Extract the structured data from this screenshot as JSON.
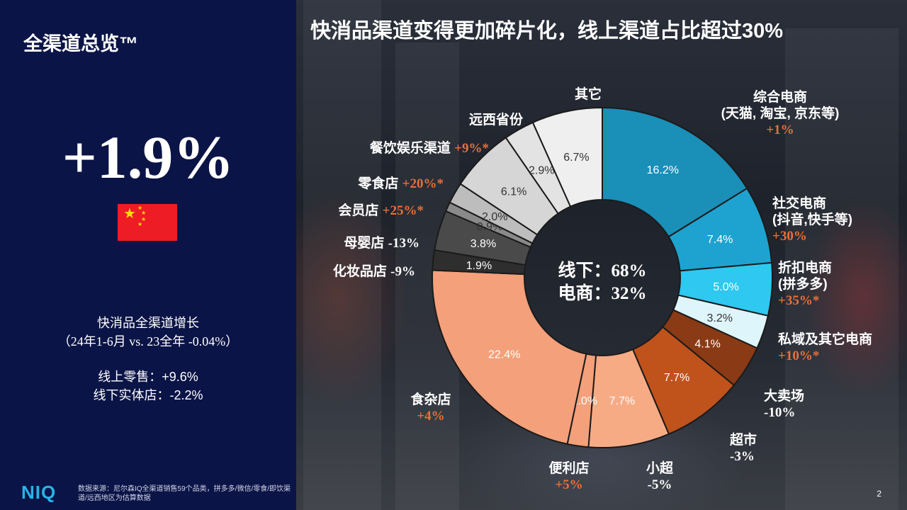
{
  "left_panel": {
    "title": "全渠道总览™",
    "big_stat": "+1.9%",
    "growth_title": "快消品全渠道增长",
    "growth_period": "（24年1-6月 vs. 23全年 -0.04%）",
    "online_line": "线上零售：+9.6%",
    "offline_line": "线下实体店：-2.2%",
    "footnote": "数据来源：尼尔森IQ全渠道销售59个品类，拼多多/微信/零食/即饮渠道/远西地区为估算数据",
    "logo": "NIQ"
  },
  "main_title": "快消品渠道变得更加碎片化，线上渠道占比超过30%",
  "page_number": "2",
  "colors": {
    "online_dark": "#1a8fb8",
    "online_light": "#2ec8f0",
    "offline_orange": "#f4a07a",
    "offline_brown": "#c0521c",
    "gray_light": "#e6e6e6",
    "gray_dark": "#3a3a3a"
  },
  "chart_data": {
    "type": "donut",
    "center_labels": [
      "线下：68%",
      "电商：32%"
    ],
    "slices": [
      {
        "label": "综合电商\n(天猫, 淘宝, 京东等)",
        "change": "+1%",
        "value": 16.2,
        "value_label": "16.2%",
        "color": "#1a8fb8"
      },
      {
        "label": "社交电商\n(抖音,快手等)",
        "change": "+30%",
        "value": 7.4,
        "value_label": "7.4%",
        "color": "#1ea3d0"
      },
      {
        "label": "折扣电商\n(拼多多)",
        "change": "+35%*",
        "value": 5.0,
        "value_label": "5.0%",
        "color": "#2ec8f0"
      },
      {
        "label": "私域及其它电商",
        "change": "+10%*",
        "value": 3.2,
        "value_label": "3.2%",
        "color": "#dff5fc"
      },
      {
        "label": "大卖场",
        "change": "-10%",
        "value": 4.1,
        "value_label": "4.1%",
        "color": "#8a3a14"
      },
      {
        "label": "超市",
        "change": "-3%",
        "value": 7.7,
        "value_label": "7.7%",
        "color": "#c0521c"
      },
      {
        "label": "小超",
        "change": "-5%",
        "value": 7.7,
        "value_label": "7.7%",
        "color": "#f7ab85"
      },
      {
        "label": "便利店",
        "change": "+5%",
        "value": 2.0,
        "value_label": "2.0%",
        "color": "#f4a07a"
      },
      {
        "label": "食杂店",
        "change": "+4%",
        "value": 22.4,
        "value_label": "22.4%",
        "color": "#f4a07a"
      },
      {
        "label": "化妆品店",
        "change": "-9%",
        "value": 1.9,
        "value_label": "1.9%",
        "color": "#2e2e2e"
      },
      {
        "label": "母婴店",
        "change": "-13%",
        "value": 3.8,
        "value_label": "3.8%",
        "color": "#4a4a4a"
      },
      {
        "label": "会员店",
        "change": "+25%*",
        "value": 0.9,
        "value_label": "0.9%",
        "color": "#8a8a8a"
      },
      {
        "label": "零食店",
        "change": "+20%*",
        "value": 2.0,
        "value_label": "2.0%",
        "color": "#bdbdbd"
      },
      {
        "label": "餐饮娱乐渠道",
        "change": "+9%*",
        "value": 6.1,
        "value_label": "6.1%",
        "color": "#d6d6d6"
      },
      {
        "label": "远西省份",
        "change": "",
        "value": 2.9,
        "value_label": "2.9%",
        "color": "#e3e3e3"
      },
      {
        "label": "其它",
        "change": "",
        "value": 6.7,
        "value_label": "6.7%",
        "color": "#efefef"
      }
    ]
  }
}
